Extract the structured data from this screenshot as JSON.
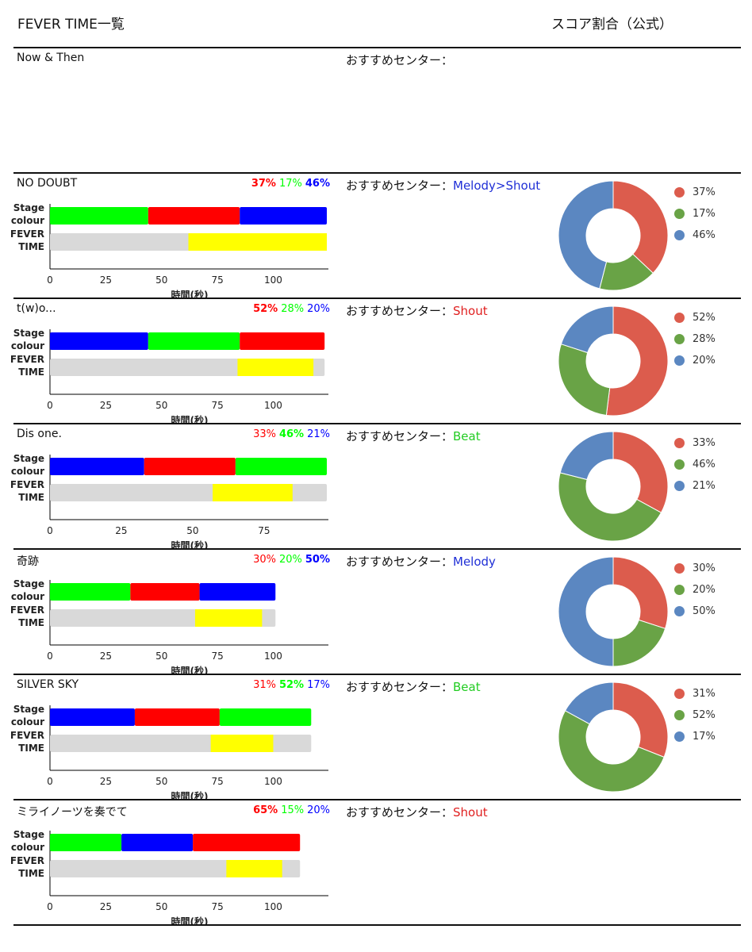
{
  "header": {
    "left_title": "FEVER TIME一覧",
    "right_title": "スコア割合（公式）"
  },
  "labels": {
    "recommend_prefix": "おすすめセンター：",
    "stage_colour": [
      "Stage",
      "colour"
    ],
    "fever_time": [
      "FEVER",
      "TIME"
    ],
    "xlabel": "時間(秒)"
  },
  "colors": {
    "green": "#00ff00",
    "red": "#ff0000",
    "blue": "#0000ff",
    "yellow": "#ffff00",
    "gray": "#d9d9d9",
    "pie_red": "#dc5c4d",
    "pie_green": "#69a346",
    "pie_blue": "#5b87c1",
    "rec_blue": "#1f2fd6",
    "rec_red": "#e02020",
    "rec_green": "#22cc22"
  },
  "songs": [
    {
      "title": "Now & Then",
      "recommend": "",
      "percents": [],
      "has_chart": false,
      "donut": false
    },
    {
      "title": "NO DOUBT",
      "recommend": "Melody>Shout",
      "recommend_color": "blue",
      "percents": [
        {
          "text": "37%",
          "color": "red",
          "bold": true
        },
        {
          "text": "17%",
          "color": "green",
          "bold": false
        },
        {
          "text": "46%",
          "color": "blue",
          "bold": true
        }
      ],
      "has_chart": true,
      "donut": true
    },
    {
      "title": "t(w)o...",
      "recommend": "Shout",
      "recommend_color": "red",
      "percents": [
        {
          "text": "52%",
          "color": "red",
          "bold": true
        },
        {
          "text": "28%",
          "color": "green",
          "bold": false
        },
        {
          "text": "20%",
          "color": "blue",
          "bold": false
        }
      ],
      "has_chart": true,
      "donut": true
    },
    {
      "title": "Dis one.",
      "recommend": "Beat",
      "recommend_color": "green",
      "percents": [
        {
          "text": "33%",
          "color": "red",
          "bold": false
        },
        {
          "text": "46%",
          "color": "green",
          "bold": true
        },
        {
          "text": "21%",
          "color": "blue",
          "bold": false
        }
      ],
      "has_chart": true,
      "donut": true
    },
    {
      "title": "奇跡",
      "recommend": "Melody",
      "recommend_color": "blue",
      "percents": [
        {
          "text": "30%",
          "color": "red",
          "bold": false
        },
        {
          "text": "20%",
          "color": "green",
          "bold": false
        },
        {
          "text": "50%",
          "color": "blue",
          "bold": true
        }
      ],
      "has_chart": true,
      "donut": true
    },
    {
      "title": "SILVER SKY",
      "recommend": "Beat",
      "recommend_color": "green",
      "percents": [
        {
          "text": "31%",
          "color": "red",
          "bold": false
        },
        {
          "text": "52%",
          "color": "green",
          "bold": true
        },
        {
          "text": "17%",
          "color": "blue",
          "bold": false
        }
      ],
      "has_chart": true,
      "donut": true
    },
    {
      "title": "ミライノーツを奏でて",
      "recommend": "Shout",
      "recommend_color": "red",
      "percents": [
        {
          "text": "65%",
          "color": "red",
          "bold": true
        },
        {
          "text": "15%",
          "color": "green",
          "bold": false
        },
        {
          "text": "20%",
          "color": "blue",
          "bold": false
        }
      ],
      "has_chart": true,
      "donut": false
    }
  ],
  "chart_data": [
    {
      "type": "bar",
      "song": "NO DOUBT",
      "categories": [
        "Stage colour",
        "FEVER TIME"
      ],
      "xlabel": "時間(秒)",
      "xlim": [
        0,
        124
      ],
      "xticks": [
        0,
        25,
        50,
        75,
        100
      ],
      "stage_colour": [
        {
          "color": "green",
          "start": 0,
          "end": 44
        },
        {
          "color": "red",
          "start": 44,
          "end": 85
        },
        {
          "color": "blue",
          "start": 85,
          "end": 124
        }
      ],
      "fever_time": {
        "total": 124,
        "start": 62,
        "end": 124
      }
    },
    {
      "type": "bar",
      "song": "t(w)o...",
      "categories": [
        "Stage colour",
        "FEVER TIME"
      ],
      "xlabel": "時間(秒)",
      "xlim": [
        0,
        124
      ],
      "xticks": [
        0,
        25,
        50,
        75,
        100
      ],
      "stage_colour": [
        {
          "color": "blue",
          "start": 0,
          "end": 44
        },
        {
          "color": "green",
          "start": 44,
          "end": 85
        },
        {
          "color": "red",
          "start": 85,
          "end": 123
        }
      ],
      "fever_time": {
        "total": 123,
        "start": 84,
        "end": 118
      }
    },
    {
      "type": "bar",
      "song": "Dis one.",
      "categories": [
        "Stage colour",
        "FEVER TIME"
      ],
      "xlabel": "時間(秒)",
      "xlim": [
        0,
        97
      ],
      "xticks": [
        0,
        25,
        50,
        75
      ],
      "stage_colour": [
        {
          "color": "blue",
          "start": 0,
          "end": 33
        },
        {
          "color": "red",
          "start": 33,
          "end": 65
        },
        {
          "color": "green",
          "start": 65,
          "end": 97
        }
      ],
      "fever_time": {
        "total": 97,
        "start": 57,
        "end": 85
      }
    },
    {
      "type": "bar",
      "song": "奇跡",
      "categories": [
        "Stage colour",
        "FEVER TIME"
      ],
      "xlabel": "時間(秒)",
      "xlim": [
        0,
        124
      ],
      "xticks": [
        0,
        25,
        50,
        75,
        100
      ],
      "stage_colour": [
        {
          "color": "green",
          "start": 0,
          "end": 36
        },
        {
          "color": "red",
          "start": 36,
          "end": 67
        },
        {
          "color": "blue",
          "start": 67,
          "end": 101
        }
      ],
      "fever_time": {
        "total": 101,
        "start": 65,
        "end": 95
      }
    },
    {
      "type": "bar",
      "song": "SILVER SKY",
      "categories": [
        "Stage colour",
        "FEVER TIME"
      ],
      "xlabel": "時間(秒)",
      "xlim": [
        0,
        124
      ],
      "xticks": [
        0,
        25,
        50,
        75,
        100
      ],
      "stage_colour": [
        {
          "color": "blue",
          "start": 0,
          "end": 38
        },
        {
          "color": "red",
          "start": 38,
          "end": 76
        },
        {
          "color": "green",
          "start": 76,
          "end": 117
        }
      ],
      "fever_time": {
        "total": 117,
        "start": 72,
        "end": 100
      }
    },
    {
      "type": "bar",
      "song": "ミライノーツを奏でて",
      "categories": [
        "Stage colour",
        "FEVER TIME"
      ],
      "xlabel": "時間(秒)",
      "xlim": [
        0,
        124
      ],
      "xticks": [
        0,
        25,
        50,
        75,
        100
      ],
      "stage_colour": [
        {
          "color": "green",
          "start": 0,
          "end": 32
        },
        {
          "color": "blue",
          "start": 32,
          "end": 64
        },
        {
          "color": "red",
          "start": 64,
          "end": 112
        }
      ],
      "fever_time": {
        "total": 112,
        "start": 79,
        "end": 104
      }
    },
    {
      "type": "pie",
      "song": "NO DOUBT",
      "donut": true,
      "labels": [
        "37%",
        "17%",
        "46%"
      ],
      "values": [
        37,
        17,
        46
      ],
      "colors": [
        "pie_red",
        "pie_green",
        "pie_blue"
      ]
    },
    {
      "type": "pie",
      "song": "t(w)o...",
      "donut": true,
      "labels": [
        "52%",
        "28%",
        "20%"
      ],
      "values": [
        52,
        28,
        20
      ],
      "colors": [
        "pie_red",
        "pie_green",
        "pie_blue"
      ]
    },
    {
      "type": "pie",
      "song": "Dis one.",
      "donut": true,
      "labels": [
        "33%",
        "46%",
        "21%"
      ],
      "values": [
        33,
        46,
        21
      ],
      "colors": [
        "pie_red",
        "pie_green",
        "pie_blue"
      ]
    },
    {
      "type": "pie",
      "song": "奇跡",
      "donut": true,
      "labels": [
        "30%",
        "20%",
        "50%"
      ],
      "values": [
        30,
        20,
        50
      ],
      "colors": [
        "pie_red",
        "pie_green",
        "pie_blue"
      ]
    },
    {
      "type": "pie",
      "song": "SILVER SKY",
      "donut": true,
      "labels": [
        "31%",
        "52%",
        "17%"
      ],
      "values": [
        31,
        52,
        17
      ],
      "colors": [
        "pie_red",
        "pie_green",
        "pie_blue"
      ]
    }
  ]
}
